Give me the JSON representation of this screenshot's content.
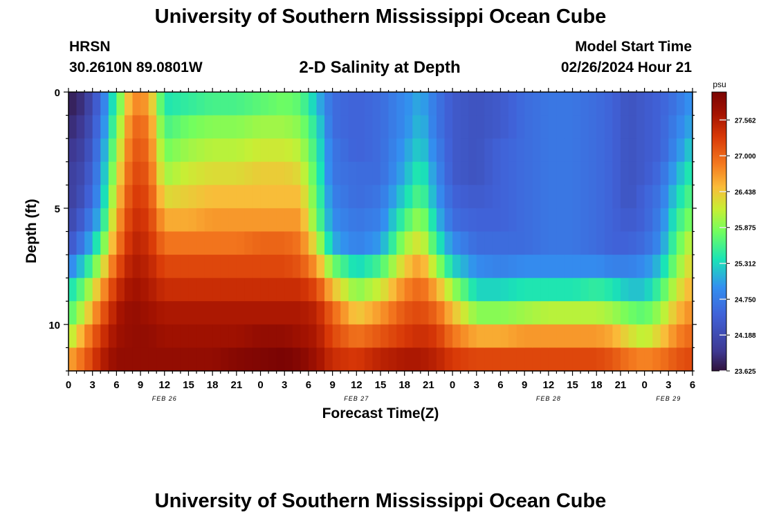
{
  "header": {
    "title": "University of Southern Mississippi Ocean Cube",
    "title_bottom": "University of Southern Mississippi Ocean Cube",
    "station": "HRSN",
    "coords": "30.2610N  89.0801W",
    "plot_title": "2-D Salinity at Depth",
    "start_label": "Model Start Time",
    "start_value": "02/26/2024 Hour 21"
  },
  "chart_data": {
    "type": "heatmap",
    "title": "2-D Salinity at Depth",
    "xlabel": "Forecast Time(Z)",
    "ylabel": "Depth (ft)",
    "x_ticks": [
      "0",
      "3",
      "6",
      "9",
      "12",
      "15",
      "18",
      "21",
      "0",
      "3",
      "6",
      "9",
      "12",
      "15",
      "18",
      "21",
      "0",
      "3",
      "6",
      "9",
      "12",
      "15",
      "18",
      "21",
      "0",
      "3",
      "6"
    ],
    "x_hours": [
      0,
      3,
      6,
      9,
      12,
      15,
      18,
      21,
      24,
      27,
      30,
      33,
      36,
      39,
      42,
      45,
      48,
      51,
      54,
      57,
      60,
      63,
      66,
      69,
      72,
      75,
      78
    ],
    "date_labels": [
      {
        "label": "FEB 26",
        "hour": 12
      },
      {
        "label": "FEB 27",
        "hour": 36
      },
      {
        "label": "FEB 28",
        "hour": 60
      },
      {
        "label": "FEB 29",
        "hour": 75
      }
    ],
    "y_ticks": [
      "0",
      "5",
      "10"
    ],
    "y_tick_values": [
      0,
      5,
      10
    ],
    "ylim": [
      0,
      12
    ],
    "xlim": [
      0,
      78
    ],
    "colorbar": {
      "unit": "psu",
      "min": 23.625,
      "max": 28.0,
      "labels": [
        "27.562",
        "27.000",
        "26.438",
        "25.875",
        "25.312",
        "24.750",
        "24.188",
        "23.625"
      ],
      "label_values": [
        27.562,
        27.0,
        26.438,
        25.875,
        25.312,
        24.75,
        24.188,
        23.625
      ]
    },
    "depth_levels_ft": [
      0.5,
      1.5,
      2.5,
      3.5,
      4.5,
      5.5,
      6.5,
      7.5,
      8.5,
      9.5,
      10.5,
      11.5
    ],
    "columns": [
      {
        "hour": 0,
        "values": [
          23.7,
          23.8,
          23.9,
          24.0,
          24.0,
          24.1,
          24.3,
          24.8,
          25.3,
          25.6,
          26.0,
          26.6
        ]
      },
      {
        "hour": 2,
        "values": [
          23.9,
          24.0,
          24.1,
          24.2,
          24.3,
          24.5,
          24.8,
          25.3,
          25.8,
          26.2,
          26.7,
          27.0
        ]
      },
      {
        "hour": 4,
        "values": [
          24.6,
          24.7,
          24.8,
          24.9,
          25.0,
          25.2,
          25.6,
          26.1,
          26.6,
          27.0,
          27.3,
          27.5
        ]
      },
      {
        "hour": 6,
        "values": [
          25.6,
          25.8,
          26.0,
          26.2,
          26.4,
          26.6,
          26.8,
          27.1,
          27.4,
          27.6,
          27.7,
          27.8
        ]
      },
      {
        "hour": 8,
        "values": [
          26.8,
          27.0,
          27.1,
          27.2,
          27.3,
          27.4,
          27.5,
          27.6,
          27.7,
          27.8,
          27.8,
          27.8
        ]
      },
      {
        "hour": 10,
        "values": [
          26.7,
          26.9,
          27.0,
          27.1,
          27.2,
          27.3,
          27.4,
          27.5,
          27.6,
          27.7,
          27.8,
          27.8
        ]
      },
      {
        "hour": 12,
        "values": [
          25.4,
          25.6,
          25.8,
          26.0,
          26.3,
          26.6,
          26.9,
          27.2,
          27.4,
          27.6,
          27.7,
          27.8
        ]
      },
      {
        "hour": 15,
        "values": [
          25.5,
          25.8,
          26.0,
          26.2,
          26.4,
          26.6,
          26.9,
          27.2,
          27.4,
          27.6,
          27.7,
          27.8
        ]
      },
      {
        "hour": 18,
        "values": [
          25.6,
          25.9,
          26.1,
          26.3,
          26.5,
          26.7,
          26.9,
          27.2,
          27.4,
          27.6,
          27.7,
          27.8
        ]
      },
      {
        "hour": 21,
        "values": [
          25.6,
          25.9,
          26.1,
          26.3,
          26.5,
          26.7,
          26.9,
          27.2,
          27.4,
          27.6,
          27.7,
          27.9
        ]
      },
      {
        "hour": 24,
        "values": [
          25.7,
          26.0,
          26.2,
          26.4,
          26.5,
          26.7,
          27.0,
          27.2,
          27.4,
          27.6,
          27.8,
          27.95
        ]
      },
      {
        "hour": 27,
        "values": [
          25.8,
          26.0,
          26.2,
          26.4,
          26.5,
          26.7,
          27.0,
          27.2,
          27.4,
          27.6,
          27.8,
          28.0
        ]
      },
      {
        "hour": 29,
        "values": [
          25.7,
          25.9,
          26.1,
          26.3,
          26.5,
          26.7,
          26.9,
          27.1,
          27.4,
          27.6,
          27.7,
          27.9
        ]
      },
      {
        "hour": 31,
        "values": [
          25.2,
          25.4,
          25.5,
          25.6,
          25.7,
          25.8,
          26.2,
          26.7,
          27.2,
          27.5,
          27.6,
          27.7
        ]
      },
      {
        "hour": 33,
        "values": [
          24.6,
          24.6,
          24.7,
          24.7,
          24.8,
          24.9,
          25.1,
          25.8,
          26.5,
          27.0,
          27.2,
          27.4
        ]
      },
      {
        "hour": 36,
        "values": [
          24.5,
          24.5,
          24.5,
          24.6,
          24.6,
          24.7,
          24.8,
          25.3,
          25.9,
          26.4,
          26.9,
          27.3
        ]
      },
      {
        "hour": 39,
        "values": [
          24.6,
          24.6,
          24.6,
          24.6,
          24.7,
          24.8,
          25.0,
          25.6,
          26.2,
          26.7,
          27.1,
          27.5
        ]
      },
      {
        "hour": 42,
        "values": [
          24.9,
          24.9,
          25.0,
          25.1,
          25.3,
          25.6,
          26.0,
          26.4,
          26.8,
          27.1,
          27.3,
          27.6
        ]
      },
      {
        "hour": 44,
        "values": [
          25.1,
          25.2,
          25.3,
          25.5,
          25.7,
          26.0,
          26.3,
          26.7,
          27.0,
          27.2,
          27.4,
          27.6
        ]
      },
      {
        "hour": 46,
        "values": [
          24.7,
          24.7,
          24.8,
          24.9,
          25.0,
          25.2,
          25.5,
          26.0,
          26.6,
          27.0,
          27.3,
          27.5
        ]
      },
      {
        "hour": 48,
        "values": [
          24.4,
          24.4,
          24.4,
          24.4,
          24.5,
          24.6,
          24.9,
          25.3,
          26.0,
          26.5,
          26.9,
          27.3
        ]
      },
      {
        "hour": 51,
        "values": [
          24.3,
          24.3,
          24.3,
          24.3,
          24.4,
          24.5,
          24.6,
          24.9,
          25.3,
          25.9,
          26.6,
          27.2
        ]
      },
      {
        "hour": 54,
        "values": [
          24.4,
          24.4,
          24.5,
          24.5,
          24.5,
          24.5,
          24.6,
          24.8,
          25.3,
          25.9,
          26.6,
          27.2
        ]
      },
      {
        "hour": 57,
        "values": [
          24.6,
          24.6,
          24.6,
          24.6,
          24.6,
          24.6,
          24.6,
          24.9,
          25.4,
          26.0,
          26.7,
          27.2
        ]
      },
      {
        "hour": 60,
        "values": [
          24.7,
          24.7,
          24.7,
          24.7,
          24.7,
          24.7,
          24.7,
          24.9,
          25.4,
          26.1,
          26.7,
          27.2
        ]
      },
      {
        "hour": 63,
        "values": [
          24.7,
          24.7,
          24.7,
          24.7,
          24.7,
          24.7,
          24.7,
          24.9,
          25.4,
          26.1,
          26.7,
          27.2
        ]
      },
      {
        "hour": 66,
        "values": [
          24.6,
          24.6,
          24.6,
          24.6,
          24.6,
          24.6,
          24.6,
          24.9,
          25.5,
          26.1,
          26.7,
          27.2
        ]
      },
      {
        "hour": 68,
        "values": [
          24.5,
          24.5,
          24.5,
          24.5,
          24.5,
          24.5,
          24.5,
          24.8,
          25.4,
          26.0,
          26.6,
          27.1
        ]
      },
      {
        "hour": 70,
        "values": [
          24.3,
          24.3,
          24.3,
          24.3,
          24.3,
          24.4,
          24.5,
          24.8,
          25.2,
          25.8,
          26.3,
          26.9
        ]
      },
      {
        "hour": 72,
        "values": [
          24.4,
          24.4,
          24.4,
          24.4,
          24.5,
          24.5,
          24.6,
          24.9,
          25.2,
          25.7,
          26.1,
          26.8
        ]
      },
      {
        "hour": 74,
        "values": [
          24.5,
          24.5,
          24.5,
          24.6,
          24.7,
          24.8,
          24.9,
          25.2,
          25.6,
          26.0,
          26.4,
          26.9
        ]
      },
      {
        "hour": 76,
        "values": [
          24.7,
          24.8,
          24.9,
          25.1,
          25.3,
          25.5,
          25.7,
          25.9,
          26.2,
          26.5,
          26.8,
          27.1
        ]
      },
      {
        "hour": 78,
        "values": [
          25.0,
          25.1,
          25.3,
          25.5,
          25.7,
          25.9,
          26.2,
          26.4,
          26.6,
          26.8,
          27.0,
          27.2
        ]
      }
    ]
  }
}
